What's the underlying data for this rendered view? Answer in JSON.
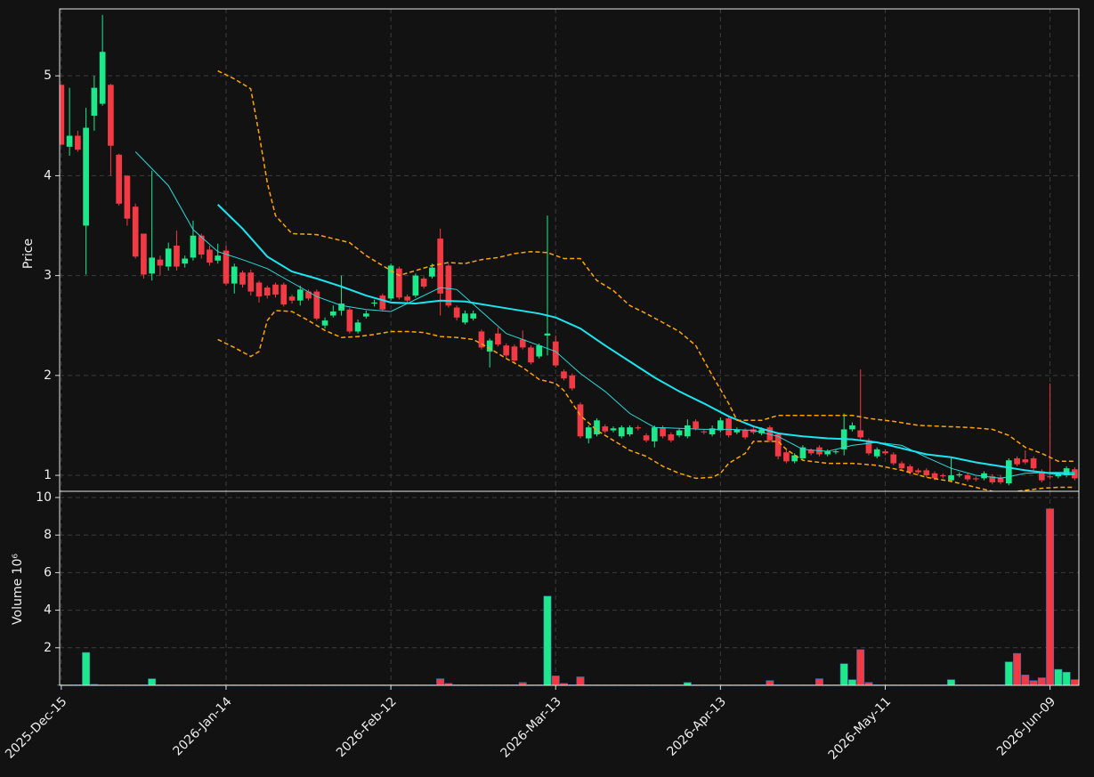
{
  "chart_data": [
    {
      "type": "candlestick",
      "ylabel": "Price",
      "up_color": "#1de98b",
      "down_color": "#f23a45",
      "grid": true,
      "xlim": [
        -0.2,
        123.5
      ],
      "ylim": [
        0.84,
        5.67
      ],
      "yticks": [
        1,
        2,
        3,
        4,
        5
      ],
      "open": [
        4.91,
        4.29,
        4.4,
        3.5,
        4.6,
        4.72,
        4.91,
        4.21,
        4.0,
        3.69,
        3.42,
        3.02,
        3.16,
        3.09,
        3.3,
        3.12,
        3.18,
        3.4,
        3.26,
        3.15,
        3.25,
        2.92,
        3.03,
        3.03,
        2.93,
        2.88,
        2.91,
        2.91,
        2.79,
        2.75,
        2.84,
        2.84,
        2.5,
        2.6,
        2.65,
        2.66,
        2.44,
        2.59,
        2.72,
        2.8,
        2.77,
        3.07,
        2.79,
        2.8,
        2.97,
        2.99,
        3.37,
        3.1,
        2.68,
        2.53,
        2.57,
        2.44,
        2.24,
        2.42,
        2.3,
        2.29,
        2.36,
        2.28,
        2.19,
        2.4,
        2.34,
        2.04,
        2.0,
        1.71,
        1.37,
        1.41,
        1.49,
        1.45,
        1.39,
        1.41,
        1.48,
        1.4,
        1.34,
        1.48,
        1.41,
        1.4,
        1.39,
        1.54,
        1.44,
        1.41,
        1.45,
        1.57,
        1.43,
        1.45,
        1.46,
        1.42,
        1.48,
        1.41,
        1.23,
        1.14,
        1.17,
        1.25,
        1.28,
        1.21,
        1.23,
        1.26,
        1.46,
        1.45,
        1.35,
        1.19,
        1.24,
        1.21,
        1.12,
        1.09,
        1.05,
        1.05,
        1.02,
        1.0,
        0.95,
        1.0,
        1.0,
        0.97,
        0.97,
        0.99,
        0.98,
        0.92,
        1.17,
        1.16,
        1.17,
        1.04,
        0.99,
        0.99,
        1.0,
        1.06
      ],
      "close": [
        4.31,
        4.4,
        4.26,
        4.48,
        4.88,
        5.24,
        4.3,
        3.72,
        3.57,
        3.19,
        3.01,
        3.18,
        3.1,
        3.27,
        3.09,
        3.17,
        3.4,
        3.21,
        3.13,
        3.2,
        2.92,
        3.09,
        2.91,
        2.84,
        2.79,
        2.8,
        2.81,
        2.71,
        2.75,
        2.86,
        2.77,
        2.57,
        2.55,
        2.64,
        2.72,
        2.44,
        2.53,
        2.62,
        2.73,
        2.66,
        3.1,
        2.78,
        2.75,
        3.0,
        2.89,
        3.08,
        2.82,
        2.7,
        2.58,
        2.62,
        2.62,
        2.28,
        2.35,
        2.31,
        2.2,
        2.15,
        2.28,
        2.13,
        2.3,
        2.42,
        2.1,
        1.97,
        1.87,
        1.39,
        1.48,
        1.55,
        1.44,
        1.47,
        1.48,
        1.48,
        1.47,
        1.35,
        1.48,
        1.39,
        1.35,
        1.45,
        1.5,
        1.47,
        1.43,
        1.47,
        1.55,
        1.4,
        1.46,
        1.38,
        1.43,
        1.46,
        1.35,
        1.19,
        1.14,
        1.2,
        1.28,
        1.22,
        1.21,
        1.24,
        1.24,
        1.46,
        1.5,
        1.38,
        1.22,
        1.26,
        1.22,
        1.12,
        1.07,
        1.03,
        1.03,
        1.0,
        0.97,
        0.99,
        1.0,
        1.01,
        0.96,
        0.96,
        1.02,
        0.93,
        0.93,
        1.15,
        1.11,
        1.13,
        1.07,
        0.95,
        0.98,
        1.01,
        1.07,
        0.97
      ],
      "high": [
        4.91,
        4.88,
        4.45,
        4.68,
        5.0,
        5.61,
        4.92,
        4.22,
        4.0,
        3.72,
        3.42,
        4.05,
        3.2,
        3.33,
        3.45,
        3.2,
        3.55,
        3.42,
        3.3,
        3.32,
        3.3,
        3.12,
        3.05,
        3.06,
        2.95,
        2.9,
        2.93,
        2.93,
        2.81,
        2.9,
        2.86,
        2.86,
        2.58,
        2.7,
        3.0,
        2.68,
        2.56,
        2.65,
        2.76,
        2.82,
        3.12,
        3.09,
        2.81,
        3.02,
        2.99,
        3.12,
        3.47,
        3.12,
        2.7,
        2.65,
        2.65,
        2.46,
        2.37,
        2.48,
        2.32,
        2.31,
        2.45,
        2.3,
        2.32,
        3.6,
        2.4,
        2.06,
        2.02,
        1.73,
        1.5,
        1.57,
        1.51,
        1.49,
        1.5,
        1.5,
        1.5,
        1.42,
        1.5,
        1.5,
        1.43,
        1.47,
        1.56,
        1.56,
        1.46,
        1.5,
        1.58,
        1.59,
        1.48,
        1.47,
        1.48,
        1.48,
        1.5,
        1.43,
        1.25,
        1.22,
        1.3,
        1.27,
        1.3,
        1.26,
        1.26,
        1.62,
        1.53,
        2.06,
        1.37,
        1.28,
        1.26,
        1.23,
        1.14,
        1.11,
        1.07,
        1.07,
        1.04,
        1.02,
        1.17,
        1.03,
        1.02,
        0.99,
        1.04,
        1.01,
        1.0,
        1.17,
        1.19,
        1.25,
        1.19,
        1.06,
        1.92,
        1.03,
        1.09,
        1.08
      ],
      "low": [
        4.31,
        4.2,
        4.24,
        3.01,
        4.45,
        4.7,
        4.0,
        3.7,
        3.5,
        3.17,
        2.97,
        2.95,
        3.0,
        3.05,
        3.05,
        3.08,
        3.15,
        3.17,
        3.1,
        3.12,
        2.9,
        2.82,
        2.88,
        2.8,
        2.73,
        2.77,
        2.78,
        2.69,
        2.72,
        2.7,
        2.75,
        2.55,
        2.47,
        2.58,
        2.6,
        2.42,
        2.42,
        2.57,
        2.69,
        2.64,
        2.75,
        2.76,
        2.73,
        2.78,
        2.87,
        2.97,
        2.6,
        2.68,
        2.55,
        2.51,
        2.55,
        2.26,
        2.08,
        2.29,
        2.18,
        2.13,
        2.26,
        2.11,
        2.17,
        2.2,
        2.08,
        1.95,
        1.85,
        1.37,
        1.32,
        1.39,
        1.42,
        1.43,
        1.37,
        1.39,
        1.45,
        1.33,
        1.28,
        1.37,
        1.33,
        1.38,
        1.37,
        1.45,
        1.41,
        1.39,
        1.43,
        1.38,
        1.41,
        1.36,
        1.41,
        1.4,
        1.33,
        1.16,
        1.12,
        1.12,
        1.15,
        1.2,
        1.19,
        1.19,
        1.21,
        1.2,
        1.44,
        1.36,
        1.2,
        1.17,
        1.2,
        1.1,
        1.05,
        1.01,
        1.01,
        0.98,
        0.95,
        0.97,
        0.93,
        0.98,
        0.94,
        0.94,
        0.95,
        0.91,
        0.91,
        0.9,
        1.09,
        1.11,
        1.05,
        0.93,
        0.96,
        0.97,
        0.98,
        0.95
      ],
      "lines": [
        {
          "color": "#2ad9d9",
          "width": 1,
          "dashed": false,
          "x": [
            9,
            13,
            16,
            19,
            22,
            25,
            28,
            31,
            34,
            37,
            40,
            43,
            46,
            48,
            51,
            54,
            57,
            60,
            63,
            66,
            69,
            72,
            75,
            78,
            81,
            84,
            87,
            90,
            93,
            96,
            99,
            102,
            105,
            108,
            111,
            114,
            117,
            120,
            123
          ],
          "values": [
            4.24,
            3.9,
            3.46,
            3.24,
            3.16,
            3.07,
            2.93,
            2.79,
            2.7,
            2.66,
            2.64,
            2.76,
            2.88,
            2.86,
            2.64,
            2.42,
            2.33,
            2.24,
            2.02,
            1.84,
            1.62,
            1.48,
            1.47,
            1.46,
            1.46,
            1.45,
            1.39,
            1.26,
            1.24,
            1.3,
            1.33,
            1.3,
            1.18,
            1.07,
            1.0,
            0.97,
            1.02,
            1.03,
            1.03
          ]
        },
        {
          "color": "#19e6f2",
          "width": 2,
          "dashed": false,
          "x": [
            19,
            22,
            25,
            28,
            31,
            34,
            37,
            40,
            43,
            46,
            49,
            52,
            55,
            58,
            60,
            63,
            66,
            69,
            72,
            75,
            78,
            81,
            84,
            87,
            90,
            93,
            96,
            99,
            102,
            105,
            108,
            111,
            114,
            117,
            120,
            123
          ],
          "values": [
            3.71,
            3.47,
            3.19,
            3.04,
            2.97,
            2.89,
            2.8,
            2.73,
            2.72,
            2.75,
            2.74,
            2.7,
            2.66,
            2.62,
            2.58,
            2.47,
            2.3,
            2.14,
            1.98,
            1.84,
            1.72,
            1.59,
            1.49,
            1.42,
            1.39,
            1.37,
            1.36,
            1.33,
            1.27,
            1.21,
            1.18,
            1.13,
            1.09,
            1.05,
            1.02,
            1.01
          ]
        },
        {
          "color": "#ffa500",
          "width": 1.5,
          "dashed": true,
          "x": [
            19,
            21,
            23,
            24,
            25,
            26,
            28,
            31,
            33,
            35,
            37,
            39,
            41,
            43,
            45,
            47,
            49,
            51,
            53,
            55,
            57,
            59,
            61,
            63,
            65,
            67,
            69,
            71,
            73,
            75,
            77,
            79,
            81,
            82,
            85,
            87,
            90,
            93,
            96,
            98,
            101,
            104,
            107,
            110,
            113,
            115,
            117,
            119,
            121,
            123
          ],
          "values": [
            5.05,
            4.97,
            4.87,
            4.42,
            3.93,
            3.6,
            3.42,
            3.41,
            3.37,
            3.33,
            3.2,
            3.1,
            3.0,
            3.05,
            3.1,
            3.13,
            3.12,
            3.16,
            3.18,
            3.22,
            3.24,
            3.23,
            3.17,
            3.17,
            2.95,
            2.85,
            2.7,
            2.62,
            2.53,
            2.44,
            2.3,
            2.0,
            1.72,
            1.55,
            1.55,
            1.6,
            1.6,
            1.6,
            1.6,
            1.57,
            1.54,
            1.5,
            1.49,
            1.48,
            1.46,
            1.4,
            1.28,
            1.22,
            1.14,
            1.14
          ]
        },
        {
          "color": "#ffa500",
          "width": 1.5,
          "dashed": true,
          "x": [
            19,
            21,
            23,
            24,
            25,
            26,
            28,
            30,
            32,
            34,
            36,
            38,
            40,
            42,
            44,
            46,
            48,
            50,
            52,
            54,
            56,
            58,
            60,
            61,
            63,
            65,
            67,
            69,
            71,
            73,
            75,
            77,
            79,
            80,
            81,
            83,
            84,
            87,
            88,
            90,
            93,
            96,
            99,
            102,
            105,
            108,
            110,
            112,
            113,
            115,
            117,
            119,
            121,
            123
          ],
          "values": [
            2.36,
            2.28,
            2.19,
            2.24,
            2.55,
            2.65,
            2.64,
            2.55,
            2.45,
            2.38,
            2.39,
            2.41,
            2.44,
            2.44,
            2.43,
            2.39,
            2.38,
            2.36,
            2.27,
            2.17,
            2.08,
            1.96,
            1.92,
            1.85,
            1.6,
            1.45,
            1.35,
            1.25,
            1.19,
            1.09,
            1.02,
            0.97,
            0.98,
            1.02,
            1.12,
            1.22,
            1.34,
            1.34,
            1.26,
            1.15,
            1.12,
            1.12,
            1.1,
            1.05,
            0.98,
            0.94,
            0.9,
            0.86,
            0.84,
            0.83,
            0.85,
            0.87,
            0.88,
            0.88
          ]
        }
      ]
    },
    {
      "type": "bar",
      "ylabel": "Volume  10⁶",
      "grid": true,
      "xlim": [
        -0.2,
        123.5
      ],
      "ylim": [
        0,
        10.33
      ],
      "yticks": [
        2,
        4,
        6,
        8,
        10
      ],
      "xticks": [
        {
          "value": 0,
          "label": "2025-Dec-15"
        },
        {
          "value": 20,
          "label": "2026-Jan-14"
        },
        {
          "value": 40,
          "label": "2026-Feb-12"
        },
        {
          "value": 60,
          "label": "2026-Mar-13"
        },
        {
          "value": 80,
          "label": "2026-Apr-13"
        },
        {
          "value": 100,
          "label": "2026-May-11"
        },
        {
          "value": 120,
          "label": "2026-Jun-09"
        }
      ],
      "values": [
        0.03,
        0.03,
        0.03,
        1.75,
        0.05,
        0.03,
        0.03,
        0.03,
        0.03,
        0.03,
        0.03,
        0.35,
        0.03,
        0.03,
        0.03,
        0.03,
        0.03,
        0.03,
        0.03,
        0.03,
        0.03,
        0.03,
        0.03,
        0.03,
        0.03,
        0.03,
        0.03,
        0.03,
        0.03,
        0.03,
        0.03,
        0.03,
        0.03,
        0.03,
        0.03,
        0.03,
        0.03,
        0.03,
        0.03,
        0.03,
        0.03,
        0.03,
        0.03,
        0.03,
        0.03,
        0.03,
        0.35,
        0.1,
        0.03,
        0.03,
        0.03,
        0.03,
        0.03,
        0.03,
        0.03,
        0.03,
        0.15,
        0.03,
        0.03,
        4.75,
        0.5,
        0.1,
        0.03,
        0.45,
        0.03,
        0.03,
        0.03,
        0.03,
        0.03,
        0.03,
        0.03,
        0.03,
        0.03,
        0.03,
        0.03,
        0.03,
        0.15,
        0.03,
        0.03,
        0.03,
        0.03,
        0.03,
        0.03,
        0.03,
        0.03,
        0.03,
        0.25,
        0.03,
        0.03,
        0.03,
        0.03,
        0.03,
        0.35,
        0.03,
        0.03,
        1.15,
        0.3,
        1.9,
        0.15,
        0.03,
        0.03,
        0.03,
        0.03,
        0.03,
        0.03,
        0.03,
        0.03,
        0.03,
        0.3,
        0.03,
        0.03,
        0.03,
        0.03,
        0.03,
        0.03,
        1.25,
        1.7,
        0.55,
        0.25,
        0.4,
        9.4,
        0.85,
        0.7,
        0.3
      ]
    }
  ]
}
